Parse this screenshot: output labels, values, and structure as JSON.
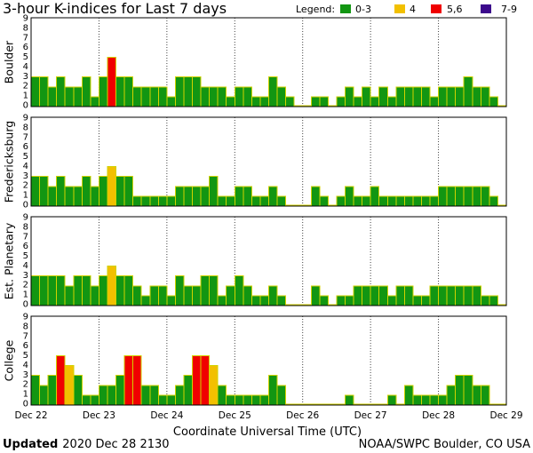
{
  "chart_data": {
    "type": "bar",
    "title": "3-hour K-indices for Last 7 days",
    "legend": {
      "label": "Legend:",
      "position": "top-right",
      "items": [
        {
          "label": "0-3",
          "color": "#129612"
        },
        {
          "label": "4",
          "color": "#f2c000"
        },
        {
          "label": "5,6",
          "color": "#f00000"
        },
        {
          "label": "7-9",
          "color": "#3c0a8c"
        }
      ]
    },
    "bar_outline_color": "#d2d200",
    "xlabel": "Coordinate Universal Time (UTC)",
    "x_ticks": [
      "Dec 22",
      "Dec 23",
      "Dec 24",
      "Dec 25",
      "Dec 26",
      "Dec 27",
      "Dec 28",
      "Dec 29"
    ],
    "y_ticks": [
      0,
      1,
      2,
      3,
      4,
      5,
      6,
      7,
      8,
      9
    ],
    "ylim": [
      0,
      9
    ],
    "grid": {
      "x": true,
      "y": false
    },
    "series": [
      {
        "name": "Boulder",
        "values": [
          3,
          3,
          2,
          3,
          2,
          2,
          3,
          1,
          3,
          5,
          3,
          3,
          2,
          2,
          2,
          2,
          1,
          3,
          3,
          3,
          2,
          2,
          2,
          1,
          2,
          2,
          1,
          1,
          3,
          2,
          1,
          0,
          0,
          1,
          1,
          0,
          1,
          2,
          1,
          2,
          1,
          2,
          1,
          2,
          2,
          2,
          2,
          1,
          2,
          2,
          2,
          3,
          2,
          2,
          1,
          0
        ]
      },
      {
        "name": "Fredericksburg",
        "values": [
          3,
          3,
          2,
          3,
          2,
          2,
          3,
          2,
          3,
          4,
          3,
          3,
          1,
          1,
          1,
          1,
          1,
          2,
          2,
          2,
          2,
          3,
          1,
          1,
          2,
          2,
          1,
          1,
          2,
          1,
          0,
          0,
          0,
          2,
          1,
          0,
          1,
          2,
          1,
          1,
          2,
          1,
          1,
          1,
          1,
          1,
          1,
          1,
          2,
          2,
          2,
          2,
          2,
          2,
          1,
          0
        ]
      },
      {
        "name": "Est. Planetary",
        "values": [
          3,
          3,
          3,
          3,
          2,
          3,
          3,
          2,
          3,
          4,
          3,
          3,
          2,
          1,
          2,
          2,
          1,
          3,
          2,
          2,
          3,
          3,
          1,
          2,
          3,
          2,
          1,
          1,
          2,
          1,
          0,
          0,
          0,
          2,
          1,
          0,
          1,
          1,
          2,
          2,
          2,
          2,
          1,
          2,
          2,
          1,
          1,
          2,
          2,
          2,
          2,
          2,
          2,
          1,
          1,
          0
        ]
      },
      {
        "name": "College",
        "values": [
          3,
          2,
          3,
          5,
          4,
          3,
          1,
          1,
          2,
          2,
          3,
          5,
          5,
          2,
          2,
          1,
          1,
          2,
          3,
          5,
          5,
          4,
          2,
          1,
          1,
          1,
          1,
          1,
          3,
          2,
          0,
          0,
          0,
          0,
          0,
          0,
          0,
          1,
          0,
          0,
          0,
          0,
          1,
          0,
          2,
          1,
          1,
          1,
          1,
          2,
          3,
          3,
          2,
          2,
          0,
          0
        ]
      }
    ]
  },
  "footer": {
    "updated_label": "Updated",
    "updated_value": "2020 Dec 28 2130",
    "credit": "NOAA/SWPC Boulder, CO USA"
  }
}
